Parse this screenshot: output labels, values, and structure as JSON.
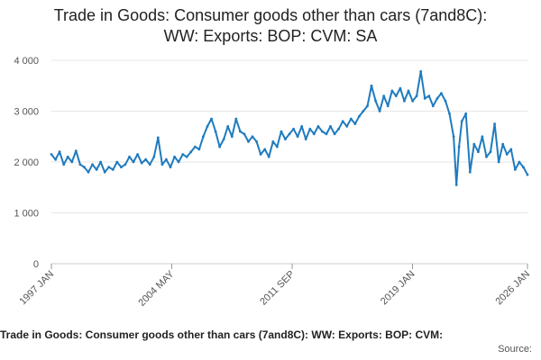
{
  "chart_data": {
    "type": "line",
    "title_lines": [
      "Trade in Goods: Consumer goods other than cars (7and8C):",
      "WW: Exports: BOP: CVM: SA"
    ],
    "xlabel": "",
    "ylabel": "",
    "ylim": [
      0,
      4000
    ],
    "y_ticks": [
      0,
      1000,
      2000,
      3000,
      4000
    ],
    "y_tick_labels": [
      "0",
      "1 000",
      "2 000",
      "3 000",
      "4 000"
    ],
    "x_tick_labels": [
      "1997 JAN",
      "2004 MAY",
      "2011 SEP",
      "2019 JAN",
      "2026 JAN"
    ],
    "x_tick_positions": [
      1997.0,
      2004.333,
      2011.667,
      2019.0,
      2026.0
    ],
    "xlim": [
      1997.0,
      2026.0
    ],
    "grid": true,
    "line_color": "#1f7bbf",
    "series": [
      {
        "name": "Trade in Goods: Consumer goods other than cars (7and8C): WW: Exports: BOP: CVM: SA",
        "points": [
          [
            1997.0,
            2150
          ],
          [
            1997.25,
            2050
          ],
          [
            1997.5,
            2200
          ],
          [
            1997.75,
            1950
          ],
          [
            1998.0,
            2100
          ],
          [
            1998.25,
            2000
          ],
          [
            1998.5,
            2220
          ],
          [
            1998.75,
            1950
          ],
          [
            1999.0,
            1900
          ],
          [
            1999.25,
            1800
          ],
          [
            1999.5,
            1950
          ],
          [
            1999.75,
            1850
          ],
          [
            2000.0,
            2000
          ],
          [
            2000.25,
            1800
          ],
          [
            2000.5,
            1900
          ],
          [
            2000.75,
            1850
          ],
          [
            2001.0,
            2000
          ],
          [
            2001.25,
            1900
          ],
          [
            2001.5,
            1950
          ],
          [
            2001.75,
            2100
          ],
          [
            2002.0,
            2000
          ],
          [
            2002.25,
            2150
          ],
          [
            2002.5,
            1980
          ],
          [
            2002.75,
            2050
          ],
          [
            2003.0,
            1950
          ],
          [
            2003.25,
            2100
          ],
          [
            2003.5,
            2480
          ],
          [
            2003.75,
            1950
          ],
          [
            2004.0,
            2050
          ],
          [
            2004.25,
            1900
          ],
          [
            2004.5,
            2100
          ],
          [
            2004.75,
            2000
          ],
          [
            2005.0,
            2150
          ],
          [
            2005.25,
            2100
          ],
          [
            2005.5,
            2200
          ],
          [
            2005.75,
            2300
          ],
          [
            2006.0,
            2250
          ],
          [
            2006.25,
            2500
          ],
          [
            2006.5,
            2700
          ],
          [
            2006.75,
            2850
          ],
          [
            2007.0,
            2600
          ],
          [
            2007.25,
            2300
          ],
          [
            2007.5,
            2450
          ],
          [
            2007.75,
            2700
          ],
          [
            2008.0,
            2500
          ],
          [
            2008.25,
            2850
          ],
          [
            2008.5,
            2600
          ],
          [
            2008.75,
            2550
          ],
          [
            2009.0,
            2400
          ],
          [
            2009.25,
            2500
          ],
          [
            2009.5,
            2400
          ],
          [
            2009.75,
            2150
          ],
          [
            2010.0,
            2250
          ],
          [
            2010.25,
            2100
          ],
          [
            2010.5,
            2400
          ],
          [
            2010.75,
            2300
          ],
          [
            2011.0,
            2600
          ],
          [
            2011.25,
            2450
          ],
          [
            2011.5,
            2550
          ],
          [
            2011.75,
            2650
          ],
          [
            2012.0,
            2500
          ],
          [
            2012.25,
            2700
          ],
          [
            2012.5,
            2450
          ],
          [
            2012.75,
            2650
          ],
          [
            2013.0,
            2550
          ],
          [
            2013.25,
            2700
          ],
          [
            2013.5,
            2600
          ],
          [
            2013.75,
            2550
          ],
          [
            2014.0,
            2700
          ],
          [
            2014.25,
            2550
          ],
          [
            2014.5,
            2650
          ],
          [
            2014.75,
            2800
          ],
          [
            2015.0,
            2700
          ],
          [
            2015.25,
            2850
          ],
          [
            2015.5,
            2750
          ],
          [
            2015.75,
            2900
          ],
          [
            2016.0,
            3000
          ],
          [
            2016.25,
            3100
          ],
          [
            2016.5,
            3500
          ],
          [
            2016.75,
            3200
          ],
          [
            2017.0,
            3000
          ],
          [
            2017.25,
            3300
          ],
          [
            2017.5,
            3100
          ],
          [
            2017.75,
            3400
          ],
          [
            2018.0,
            3300
          ],
          [
            2018.25,
            3450
          ],
          [
            2018.5,
            3200
          ],
          [
            2018.75,
            3400
          ],
          [
            2019.0,
            3200
          ],
          [
            2019.25,
            3300
          ],
          [
            2019.5,
            3780
          ],
          [
            2019.75,
            3250
          ],
          [
            2020.0,
            3300
          ],
          [
            2020.25,
            3100
          ],
          [
            2020.5,
            3250
          ],
          [
            2020.75,
            3350
          ],
          [
            2021.0,
            3200
          ],
          [
            2021.25,
            2950
          ],
          [
            2021.5,
            2500
          ],
          [
            2021.67,
            1550
          ],
          [
            2021.83,
            2300
          ],
          [
            2022.0,
            2800
          ],
          [
            2022.25,
            2950
          ],
          [
            2022.5,
            1800
          ],
          [
            2022.75,
            2350
          ],
          [
            2023.0,
            2200
          ],
          [
            2023.25,
            2500
          ],
          [
            2023.5,
            2100
          ],
          [
            2023.75,
            2200
          ],
          [
            2024.0,
            2750
          ],
          [
            2024.25,
            2000
          ],
          [
            2024.5,
            2350
          ],
          [
            2024.75,
            2150
          ],
          [
            2025.0,
            2250
          ],
          [
            2025.25,
            1850
          ],
          [
            2025.5,
            2000
          ],
          [
            2025.75,
            1900
          ],
          [
            2026.0,
            1750
          ]
        ]
      }
    ]
  },
  "footer": {
    "caption": "Trade in Goods: Consumer goods other than cars (7and8C): WW: Exports: BOP: CVM:",
    "source_label": "Source:"
  }
}
